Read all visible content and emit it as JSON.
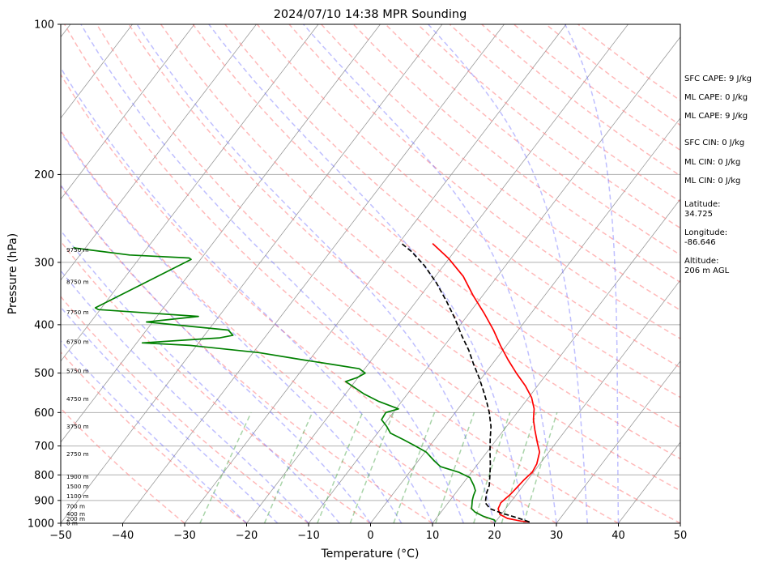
{
  "chart_data": {
    "type": "line",
    "subtype": "skew-t log-p",
    "title": "2024/07/10 14:38 MPR Sounding",
    "xlabel": "Temperature (°C)",
    "ylabel": "Pressure (hPa)",
    "xlim": [
      -50,
      50
    ],
    "ylim": [
      1000,
      100
    ],
    "y_scale": "log",
    "x_ticks": [
      "−50",
      "−40",
      "−30",
      "−20",
      "−10",
      "0",
      "10",
      "20",
      "30",
      "40",
      "50"
    ],
    "y_ticks": [
      "1000",
      "900",
      "800",
      "700",
      "600",
      "500",
      "400",
      "300",
      "200",
      "100"
    ],
    "grid": "horizontal pressure lines",
    "series": [
      {
        "color": "#ff0000",
        "style": "solid",
        "points": [
          [
            25.5,
            994
          ],
          [
            24,
            990
          ],
          [
            21.5,
            978
          ],
          [
            19.8,
            960
          ],
          [
            18.8,
            935
          ],
          [
            18.5,
            910
          ],
          [
            19,
            875
          ],
          [
            19.2,
            850
          ],
          [
            19.4,
            820
          ],
          [
            19.8,
            790
          ],
          [
            19.5,
            760
          ],
          [
            18.5,
            720
          ],
          [
            17,
            690
          ],
          [
            15,
            650
          ],
          [
            13.5,
            620
          ],
          [
            12.3,
            590
          ],
          [
            10.5,
            560
          ],
          [
            8,
            530
          ],
          [
            5,
            500
          ],
          [
            2,
            470
          ],
          [
            -1,
            440
          ],
          [
            -4,
            410
          ],
          [
            -7.5,
            380
          ],
          [
            -11.5,
            350
          ],
          [
            -15.5,
            320
          ],
          [
            -20,
            295
          ],
          [
            -24.5,
            275
          ]
        ]
      },
      {
        "color": "#000000",
        "style": "dashed",
        "points": [
          [
            25.5,
            994
          ],
          [
            23,
            975
          ],
          [
            20,
            955
          ],
          [
            17.5,
            935
          ],
          [
            16,
            910
          ],
          [
            15,
            870
          ],
          [
            14.5,
            840
          ],
          [
            13.3,
            800
          ],
          [
            12,
            760
          ],
          [
            10.5,
            720
          ],
          [
            9,
            680
          ],
          [
            7.5,
            640
          ],
          [
            5.5,
            600
          ],
          [
            3.7,
            570
          ],
          [
            1.7,
            540
          ],
          [
            -0.5,
            510
          ],
          [
            -3,
            480
          ],
          [
            -5.5,
            450
          ],
          [
            -8.5,
            420
          ],
          [
            -11.5,
            390
          ],
          [
            -15,
            360
          ],
          [
            -19,
            330
          ],
          [
            -23,
            305
          ],
          [
            -27,
            285
          ],
          [
            -29.5,
            275
          ]
        ]
      },
      {
        "color": "#008000",
        "style": "solid",
        "points": [
          [
            20,
            994
          ],
          [
            19.6,
            985
          ],
          [
            17.3,
            968
          ],
          [
            15.5,
            950
          ],
          [
            14.5,
            935
          ],
          [
            14,
            915
          ],
          [
            13.6,
            900
          ],
          [
            13.2,
            880
          ],
          [
            12.9,
            860
          ],
          [
            12,
            840
          ],
          [
            10.4,
            810
          ],
          [
            7.9,
            790
          ],
          [
            4.3,
            770
          ],
          [
            2.6,
            750
          ],
          [
            0.2,
            720
          ],
          [
            -2.3,
            700
          ],
          [
            -5,
            680
          ],
          [
            -7.9,
            660
          ],
          [
            -9.3,
            640
          ],
          [
            -11,
            620
          ],
          [
            -11.2,
            600
          ],
          [
            -9.6,
            590
          ],
          [
            -13.7,
            570
          ],
          [
            -17.1,
            550
          ],
          [
            -20,
            530
          ],
          [
            -21.5,
            520
          ],
          [
            -20.1,
            510
          ],
          [
            -19.4,
            500
          ],
          [
            -20.9,
            490
          ],
          [
            -26,
            480
          ],
          [
            -31.3,
            470
          ],
          [
            -39.1,
            455
          ],
          [
            -51.1,
            440
          ],
          [
            -59.1,
            435
          ],
          [
            -47.2,
            425
          ],
          [
            -45.4,
            420
          ],
          [
            -46.8,
            410
          ],
          [
            -61,
            395
          ],
          [
            -53.3,
            385
          ],
          [
            -70.3,
            373
          ],
          [
            -71,
            370
          ],
          [
            -61.5,
            296
          ],
          [
            -62,
            294
          ],
          [
            -72,
            290
          ],
          [
            -81.5,
            281
          ],
          [
            -82,
            280
          ]
        ]
      }
    ],
    "height_labels": [
      "0 m",
      "200 m",
      "400 m",
      "700 m",
      "1100 m",
      "1500 m",
      "1900 m",
      "2750 m",
      "3750 m",
      "4750 m",
      "5750 m",
      "6750 m",
      "7750 m",
      "8750 m",
      "9750 m"
    ],
    "height_label_pressures": [
      1000,
      980,
      958,
      925,
      882,
      844,
      807,
      726,
      640,
      563,
      495,
      433,
      378,
      328,
      283
    ],
    "reference_lines": {
      "dry_adiabats": "red dashed",
      "moist_adiabats": "blue dashed",
      "mixing_ratio": "green dashed",
      "isotherms": "gray skewed"
    },
    "side_panel": [
      "SFC CAPE: 9 J/kg",
      "ML CAPE: 0 J/kg",
      "ML CAPE: 9 J/kg",
      "SFC CIN: 0 J/kg",
      "ML CIN: 0 J/kg",
      "ML CIN: 0 J/kg",
      "Latitude:\n34.725",
      "Longitude:\n-86.646",
      "Altitude:\n206 m AGL"
    ]
  }
}
